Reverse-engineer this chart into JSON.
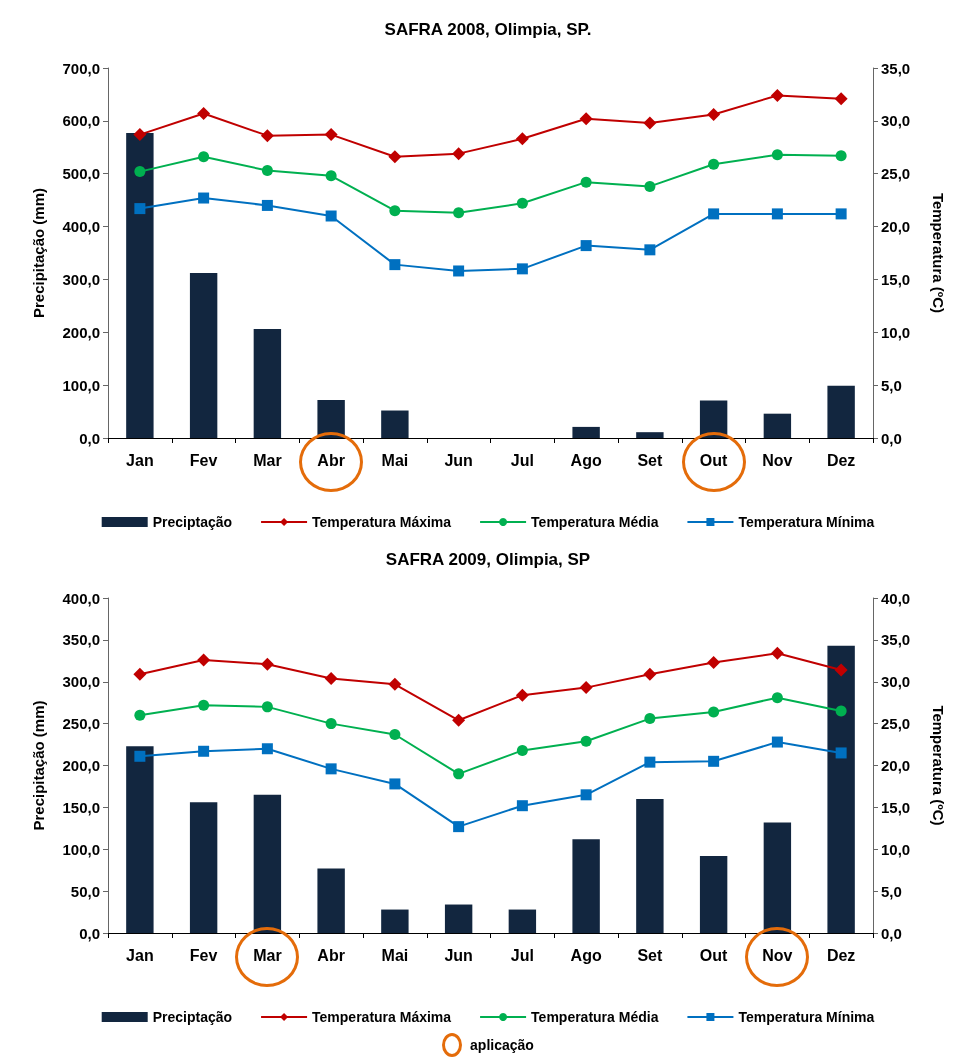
{
  "chart_data": [
    {
      "type": "bar",
      "title": "SAFRA 2008, Olimpia, SP.",
      "ylabel": "Precipitação (mm)",
      "y2label": "Temperatura (ºC)",
      "categories": [
        "Jan",
        "Fev",
        "Mar",
        "Abr",
        "Mai",
        "Jun",
        "Jul",
        "Ago",
        "Set",
        "Out",
        "Nov",
        "Dez"
      ],
      "series": [
        {
          "name": "Preciptação",
          "color": "#12263f",
          "values": [
            577,
            312,
            206,
            72,
            52,
            0,
            0,
            21,
            11,
            71,
            46,
            99
          ]
        },
        {
          "name": "Temperatura Máxima",
          "type": "line",
          "axis": "y2",
          "marker": "diamond",
          "color": "#c00000",
          "values": [
            28.7,
            30.7,
            28.6,
            28.7,
            26.6,
            26.9,
            28.3,
            30.2,
            29.8,
            30.6,
            32.4,
            32.1
          ]
        },
        {
          "name": "Temperatura Média",
          "type": "line",
          "axis": "y2",
          "marker": "circle",
          "color": "#00b050",
          "values": [
            25.2,
            26.6,
            25.3,
            24.8,
            21.5,
            21.3,
            22.2,
            24.2,
            23.8,
            25.9,
            26.8,
            26.7
          ]
        },
        {
          "name": "Temperatura Mínima",
          "type": "line",
          "axis": "y2",
          "marker": "square",
          "color": "#0070c0",
          "values": [
            21.7,
            22.7,
            22.0,
            21.0,
            16.4,
            15.8,
            16.0,
            18.2,
            17.8,
            21.2,
            21.2,
            21.2
          ]
        }
      ],
      "ylim": [
        0,
        700
      ],
      "yticks": [
        {
          "value": 0,
          "label": "0,0"
        },
        {
          "value": 100,
          "label": "100,0"
        },
        {
          "value": 200,
          "label": "200,0"
        },
        {
          "value": 300,
          "label": "300,0"
        },
        {
          "value": 400,
          "label": "400,0"
        },
        {
          "value": 500,
          "label": "500,0"
        },
        {
          "value": 600,
          "label": "600,0"
        },
        {
          "value": 700,
          "label": "700,0"
        }
      ],
      "y2lim": [
        0,
        35
      ],
      "y2ticks": [
        {
          "value": 0,
          "label": "0,0"
        },
        {
          "value": 5,
          "label": "5,0"
        },
        {
          "value": 10,
          "label": "10,0"
        },
        {
          "value": 15,
          "label": "15,0"
        },
        {
          "value": 20,
          "label": "20,0"
        },
        {
          "value": 25,
          "label": "25,0"
        },
        {
          "value": 30,
          "label": "30,0"
        },
        {
          "value": 35,
          "label": "35,0"
        }
      ],
      "grid": false,
      "legend": "bottom"
    },
    {
      "type": "bar",
      "title": "SAFRA 2009, Olimpia, SP",
      "ylabel": "Precipitação (mm)",
      "y2label": "Temperatura (ºC)",
      "categories": [
        "Jan",
        "Fev",
        "Mar",
        "Abr",
        "Mai",
        "Jun",
        "Jul",
        "Ago",
        "Set",
        "Out",
        "Nov",
        "Dez"
      ],
      "series": [
        {
          "name": "Preciptação",
          "color": "#12263f",
          "values": [
            223,
            156,
            165,
            77,
            28,
            34,
            28,
            112,
            160,
            92,
            132,
            343
          ]
        },
        {
          "name": "Temperatura Máxima",
          "type": "line",
          "axis": "y2",
          "marker": "diamond",
          "color": "#c00000",
          "values": [
            30.9,
            32.6,
            32.1,
            30.4,
            29.7,
            25.4,
            28.4,
            29.3,
            30.9,
            32.3,
            33.4,
            31.4
          ]
        },
        {
          "name": "Temperatura Média",
          "type": "line",
          "axis": "y2",
          "marker": "circle",
          "color": "#00b050",
          "values": [
            26.0,
            27.2,
            27.0,
            25.0,
            23.7,
            19.0,
            21.8,
            22.9,
            25.6,
            26.4,
            28.1,
            26.5
          ]
        },
        {
          "name": "Temperatura Mínima",
          "type": "line",
          "axis": "y2",
          "marker": "square",
          "color": "#0070c0",
          "values": [
            21.1,
            21.7,
            22.0,
            19.6,
            17.8,
            12.7,
            15.2,
            16.5,
            20.4,
            20.5,
            22.8,
            21.5
          ]
        }
      ],
      "ylim": [
        0,
        400
      ],
      "yticks": [
        {
          "value": 0,
          "label": "0,0"
        },
        {
          "value": 50,
          "label": "50,0"
        },
        {
          "value": 100,
          "label": "100,0"
        },
        {
          "value": 150,
          "label": "150,0"
        },
        {
          "value": 200,
          "label": "200,0"
        },
        {
          "value": 250,
          "label": "250,0"
        },
        {
          "value": 300,
          "label": "300,0"
        },
        {
          "value": 350,
          "label": "350,0"
        },
        {
          "value": 400,
          "label": "400,0"
        }
      ],
      "y2lim": [
        0,
        40
      ],
      "y2ticks": [
        {
          "value": 0,
          "label": "0,0"
        },
        {
          "value": 5,
          "label": "5,0"
        },
        {
          "value": 10,
          "label": "10,0"
        },
        {
          "value": 15,
          "label": "15,0"
        },
        {
          "value": 20,
          "label": "20,0"
        },
        {
          "value": 25,
          "label": "25,0"
        },
        {
          "value": 30,
          "label": "30,0"
        },
        {
          "value": 35,
          "label": "35,0"
        },
        {
          "value": 40,
          "label": "40,0"
        }
      ],
      "grid": false,
      "legend": "bottom",
      "annotations": [
        "aplicação"
      ]
    }
  ]
}
